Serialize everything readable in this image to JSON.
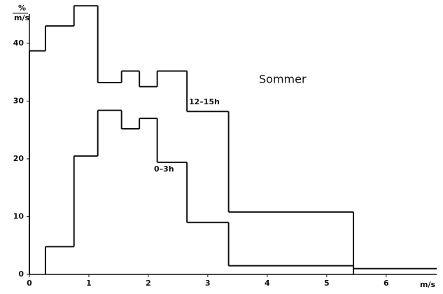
{
  "chart_data": {
    "type": "step-histogram",
    "ylabel": "%",
    "yunit": "m/s",
    "xlabel": "m/s",
    "annotation": "Sommer",
    "xlim": [
      0,
      6.85
    ],
    "ylim": [
      0,
      47.5
    ],
    "xticks": [
      0,
      1,
      2,
      3,
      4,
      5,
      6
    ],
    "yticks": [
      0,
      10,
      20,
      30,
      40
    ],
    "series": [
      {
        "name": "12–15h",
        "color": "#111111",
        "bins": [
          0,
          0.27,
          0.75,
          1.15,
          1.55,
          1.85,
          2.15,
          2.65,
          3.35,
          5.45,
          6.85
        ],
        "values": [
          38.7,
          43,
          46.5,
          33.2,
          35.2,
          32.5,
          35.2,
          28.2,
          10.8,
          1
        ]
      },
      {
        "name": "0–3h",
        "color": "#111111",
        "bins": [
          0.27,
          0.75,
          1.15,
          1.55,
          1.85,
          2.15,
          2.65,
          3.35,
          5.45
        ],
        "values": [
          4.8,
          20.5,
          28.4,
          25.2,
          27,
          19.4,
          9,
          1.5
        ]
      }
    ]
  }
}
